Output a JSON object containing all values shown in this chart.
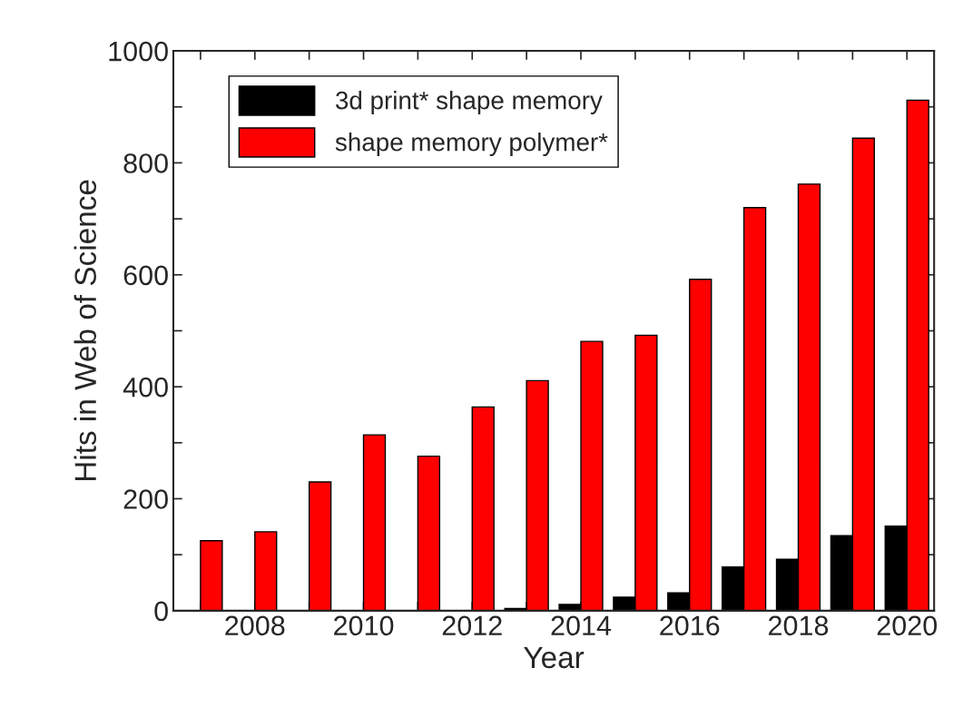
{
  "chart_data": {
    "type": "bar",
    "xlabel": "Year",
    "ylabel": "Hits in Web of Science",
    "x": [
      2007,
      2008,
      2009,
      2010,
      2011,
      2012,
      2013,
      2014,
      2015,
      2016,
      2017,
      2018,
      2019,
      2020
    ],
    "series": [
      {
        "name": "3d print* shape memory",
        "color": "#000000",
        "values": [
          0,
          0,
          0,
          null,
          0,
          null,
          4,
          11,
          24,
          32,
          78,
          92,
          134,
          151
        ]
      },
      {
        "name": "shape memory polymer*",
        "color": "#ff0000",
        "values": [
          125,
          141,
          230,
          314,
          276,
          364,
          411,
          481,
          492,
          592,
          720,
          762,
          844,
          912
        ]
      }
    ],
    "xlim": [
      2006.5,
      2020.5
    ],
    "xticks": [
      {
        "value": 2007,
        "label": null
      },
      2008,
      {
        "value": 2009,
        "label": null
      },
      2010,
      {
        "value": 2011,
        "label": null
      },
      2012,
      {
        "value": 2013,
        "label": null
      },
      2014,
      {
        "value": 2015,
        "label": null
      },
      2016,
      {
        "value": 2017,
        "label": null
      },
      2018,
      {
        "value": 2019,
        "label": null
      },
      2020
    ],
    "ylim": [
      0,
      1000
    ],
    "yticks": [
      0,
      {
        "value": 100,
        "label": null
      },
      200,
      {
        "value": 300,
        "label": null
      },
      400,
      {
        "value": 500,
        "label": null
      },
      600,
      {
        "value": 700,
        "label": null
      },
      800,
      {
        "value": 900,
        "label": null
      },
      1000
    ],
    "legend": "top left",
    "grid": false
  }
}
